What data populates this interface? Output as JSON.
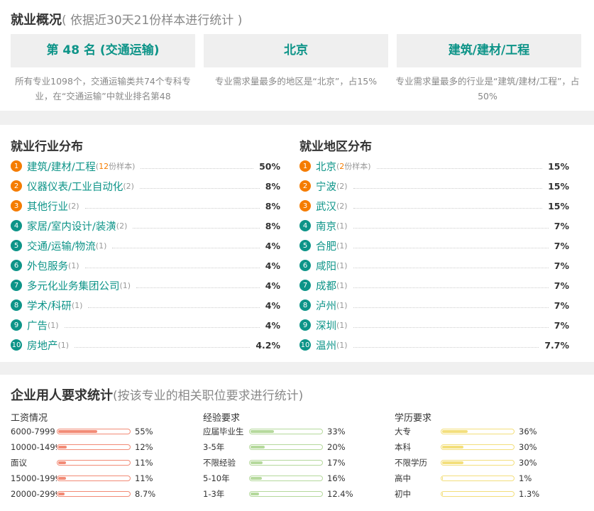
{
  "overview": {
    "title": "就业概况",
    "subtitle": "( 依据近30天21份样本进行统计 )",
    "cards": [
      {
        "value": "第 48 名 (交通运输)",
        "desc": "所有专业1098个，交通运输类共74个专科专业，在“交通运输”中就业排名第48"
      },
      {
        "value": "北京",
        "desc": "专业需求量最多的地区是“北京”，占15%"
      },
      {
        "value": "建筑/建材/工程",
        "desc": "专业需求量最多的行业是“建筑/建材/工程”，占50%"
      }
    ]
  },
  "industry": {
    "title": "就业行业分布",
    "items": [
      {
        "rank": "1",
        "name": "建筑/建材/工程",
        "count": "12",
        "note_suffix": "份样本)",
        "pct": "50%"
      },
      {
        "rank": "2",
        "name": "仪器仪表/工业自动化",
        "note": "(2)",
        "pct": "8%"
      },
      {
        "rank": "3",
        "name": "其他行业",
        "note": "(2)",
        "pct": "8%"
      },
      {
        "rank": "4",
        "name": "家居/室内设计/装潢",
        "note": "(2)",
        "pct": "8%"
      },
      {
        "rank": "5",
        "name": "交通/运输/物流",
        "note": "(1)",
        "pct": "4%"
      },
      {
        "rank": "6",
        "name": "外包服务",
        "note": "(1)",
        "pct": "4%"
      },
      {
        "rank": "7",
        "name": "多元化业务集团公司",
        "note": "(1)",
        "pct": "4%"
      },
      {
        "rank": "8",
        "name": "学术/科研",
        "note": "(1)",
        "pct": "4%"
      },
      {
        "rank": "9",
        "name": "广告",
        "note": "(1)",
        "pct": "4%"
      },
      {
        "rank": "10",
        "name": "房地产",
        "note": "(1)",
        "pct": "4.2%"
      }
    ]
  },
  "region": {
    "title": "就业地区分布",
    "items": [
      {
        "rank": "1",
        "name": "北京",
        "count": "2",
        "note_suffix": "份样本)",
        "pct": "15%"
      },
      {
        "rank": "2",
        "name": "宁波",
        "note": "(2)",
        "pct": "15%"
      },
      {
        "rank": "3",
        "name": "武汉",
        "note": "(2)",
        "pct": "15%"
      },
      {
        "rank": "4",
        "name": "南京",
        "note": "(1)",
        "pct": "7%"
      },
      {
        "rank": "5",
        "name": "合肥",
        "note": "(1)",
        "pct": "7%"
      },
      {
        "rank": "6",
        "name": "咸阳",
        "note": "(1)",
        "pct": "7%"
      },
      {
        "rank": "7",
        "name": "成都",
        "note": "(1)",
        "pct": "7%"
      },
      {
        "rank": "8",
        "name": "泸州",
        "note": "(1)",
        "pct": "7%"
      },
      {
        "rank": "9",
        "name": "深圳",
        "note": "(1)",
        "pct": "7%"
      },
      {
        "rank": "10",
        "name": "温州",
        "note": "(1)",
        "pct": "7.7%"
      }
    ]
  },
  "requirements": {
    "title": "企业用人要求统计",
    "subtitle": "(按该专业的相关职位要求进行统计)",
    "salary": {
      "title": "工资情况",
      "rows": [
        {
          "label": "6000-7999",
          "value": "55%",
          "fraction": 0.55
        },
        {
          "label": "10000-14999",
          "value": "12%",
          "fraction": 0.12
        },
        {
          "label": "面议",
          "value": "11%",
          "fraction": 0.11
        },
        {
          "label": "15000-19999",
          "value": "11%",
          "fraction": 0.11
        },
        {
          "label": "20000-29999",
          "value": "8.7%",
          "fraction": 0.087
        }
      ]
    },
    "experience": {
      "title": "经验要求",
      "rows": [
        {
          "label": "应届毕业生",
          "value": "33%",
          "fraction": 0.33
        },
        {
          "label": "3-5年",
          "value": "20%",
          "fraction": 0.2
        },
        {
          "label": "不限经验",
          "value": "17%",
          "fraction": 0.17
        },
        {
          "label": "5-10年",
          "value": "16%",
          "fraction": 0.16
        },
        {
          "label": "1-3年",
          "value": "12.4%",
          "fraction": 0.124
        }
      ]
    },
    "education": {
      "title": "学历要求",
      "rows": [
        {
          "label": "大专",
          "value": "36%",
          "fraction": 0.36
        },
        {
          "label": "本科",
          "value": "30%",
          "fraction": 0.3
        },
        {
          "label": "不限学历",
          "value": "30%",
          "fraction": 0.3
        },
        {
          "label": "高中",
          "value": "1%",
          "fraction": 0.01
        },
        {
          "label": "初中",
          "value": "1.3%",
          "fraction": 0.013
        }
      ]
    }
  }
}
